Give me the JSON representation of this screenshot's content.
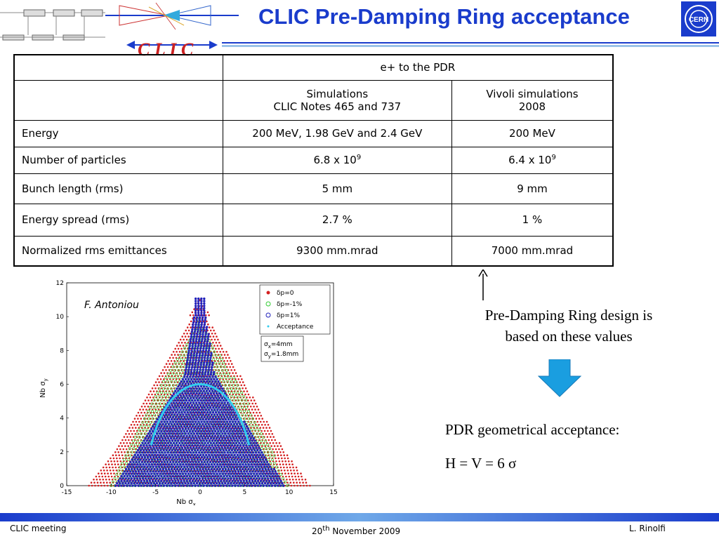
{
  "header": {
    "title": "CLIC Pre-Damping Ring acceptance",
    "logo_text": "C L I C",
    "cern_logo_text": "CERN"
  },
  "table": {
    "group_header": "e+ to the PDR",
    "col2_header_line1": "Simulations",
    "col2_header_line2": "CLIC Notes 465 and 737",
    "col3_header_line1": "Vivoli simulations",
    "col3_header_line2": "2008",
    "rows": [
      {
        "label": "Energy",
        "sim": "200 MeV, 1.98 GeV and 2.4 GeV",
        "vivoli": "200 MeV"
      },
      {
        "label": "Number of particles",
        "sim_base": "6.8 x 10",
        "sim_exp": "9",
        "vivoli_base": "6.4 x 10",
        "vivoli_exp": "9"
      },
      {
        "label": "Bunch length (rms)",
        "sim": "5 mm",
        "vivoli": "9 mm"
      },
      {
        "label": "Energy spread (rms)",
        "sim": "2.7 %",
        "vivoli": "1 %"
      },
      {
        "label": "Normalized rms emittances",
        "sim": "9300 mm.mrad",
        "vivoli": "7000 mm.mrad"
      }
    ]
  },
  "plot": {
    "author": "F. Antoniou",
    "xlabel": "Nb σ",
    "xlabel_sub": "x",
    "ylabel": "Nb σ",
    "ylabel_sub": "y",
    "xticks": [
      "-15",
      "-10",
      "-5",
      "0",
      "5",
      "10",
      "15"
    ],
    "yticks": [
      "0",
      "2",
      "4",
      "6",
      "8",
      "10",
      "12"
    ],
    "legend": [
      "δp=0",
      "δp=-1%",
      "δp=1%",
      "Acceptance"
    ],
    "annotation_line1": "σ",
    "annotation_line1_sub": "x",
    "annotation_line1_val": "=4mm",
    "annotation_line2": "σ",
    "annotation_line2_sub": "y",
    "annotation_line2_val": "=1.8mm",
    "colors": {
      "dp0": "#d42020",
      "dpm1": "#33cc33",
      "dp1": "#2222bb",
      "acceptance": "#33ccee"
    }
  },
  "notes": {
    "design_line1": "Pre-Damping Ring design is",
    "design_line2": "based on these values",
    "acceptance_label": "PDR geometrical acceptance:",
    "acceptance_eq": "H = V = 6 σ"
  },
  "footer": {
    "left": "CLIC  meeting",
    "center_day": "20",
    "center_sup": "th",
    "center_rest": " November 2009",
    "right": "L. Rinolfi"
  }
}
